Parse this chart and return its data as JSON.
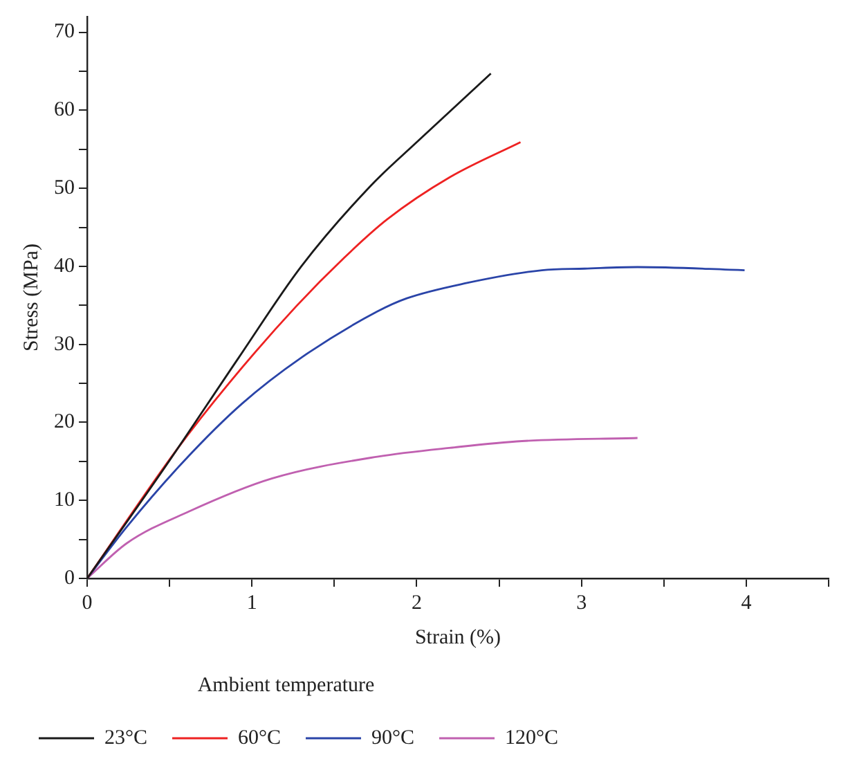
{
  "chart_data": {
    "type": "line",
    "xlabel": "Strain (%)",
    "ylabel": "Stress (MPa)",
    "legend_title": "Ambient temperature",
    "legend": "bottom",
    "marker": "none",
    "line_style": "solid",
    "xlim": [
      0,
      4.5
    ],
    "xticks": [
      0,
      {
        "value": 0.5,
        "label": null
      },
      1,
      {
        "value": 1.5,
        "label": null
      },
      2,
      {
        "value": 2.5,
        "label": null
      },
      3,
      {
        "value": 3.5,
        "label": null
      },
      4,
      {
        "value": 4.5,
        "label": null
      }
    ],
    "ylim": [
      0,
      72
    ],
    "yticks": [
      0,
      {
        "value": 5,
        "label": null
      },
      10,
      {
        "value": 15,
        "label": null
      },
      20,
      {
        "value": 25,
        "label": null
      },
      30,
      {
        "value": 35,
        "label": null
      },
      40,
      {
        "value": 45,
        "label": null
      },
      50,
      {
        "value": 55,
        "label": null
      },
      60,
      {
        "value": 65,
        "label": null
      },
      70
    ],
    "series": [
      {
        "name": "23°C",
        "color": "#1a1a1a",
        "x": [
          0,
          0.48,
          0.92,
          1.3,
          1.72,
          2.0,
          2.45
        ],
        "values": [
          0,
          14.5,
          28.3,
          40,
          50.3,
          55.9,
          64.7
        ]
      },
      {
        "name": "60°C",
        "color": "#ee2222",
        "x": [
          0,
          0.54,
          0.86,
          1.27,
          1.56,
          1.82,
          2.2,
          2.63
        ],
        "values": [
          0,
          16.4,
          25,
          34.9,
          41.1,
          46,
          51.4,
          55.9
        ]
      },
      {
        "name": "90°C",
        "color": "#2a44a8",
        "x": [
          0,
          0.24,
          0.59,
          0.94,
          1.3,
          1.76,
          1.94,
          2.29,
          2.76,
          3.02,
          3.34,
          3.99
        ],
        "values": [
          0,
          6.6,
          15.1,
          22.4,
          28.3,
          34.2,
          35.9,
          37.8,
          39.5,
          39.7,
          39.9,
          39.5
        ]
      },
      {
        "name": "120°C",
        "color": "#c060b0",
        "x": [
          0,
          0.24,
          0.62,
          1.12,
          1.76,
          2.23,
          2.64,
          3.34
        ],
        "values": [
          0,
          4.5,
          8.6,
          12.8,
          15.6,
          16.8,
          17.6,
          18.0
        ]
      }
    ]
  }
}
